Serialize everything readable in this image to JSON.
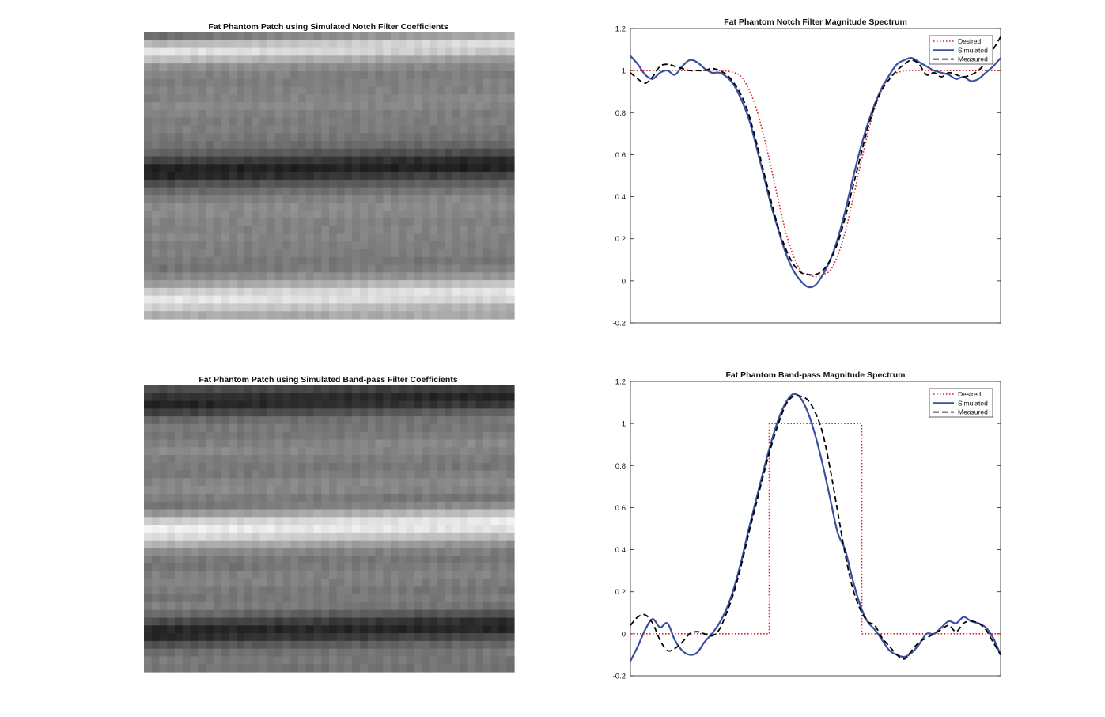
{
  "colors": {
    "desired": "#d62728",
    "simulated": "#3a4fa0",
    "measured": "#000000"
  },
  "images": [
    {
      "title": "Fat Phantom Patch using Simulated Notch Filter Coefficients",
      "rows": [
        0.42,
        0.72,
        0.94,
        0.78,
        0.58,
        0.52,
        0.48,
        0.52,
        0.5,
        0.55,
        0.52,
        0.48,
        0.5,
        0.47,
        0.44,
        0.38,
        0.25,
        0.1,
        0.1,
        0.28,
        0.4,
        0.48,
        0.55,
        0.55,
        0.52,
        0.5,
        0.53,
        0.5,
        0.5,
        0.48,
        0.45,
        0.52,
        0.62,
        0.82,
        0.95,
        0.85,
        0.68
      ],
      "tilt": 0.9
    },
    {
      "title": "Fat Phantom Patch using Simulated Band-pass Filter Coefficients",
      "rows": [
        0.3,
        0.18,
        0.1,
        0.22,
        0.4,
        0.48,
        0.45,
        0.5,
        0.55,
        0.5,
        0.48,
        0.46,
        0.52,
        0.55,
        0.5,
        0.44,
        0.58,
        0.82,
        0.98,
        0.9,
        0.72,
        0.55,
        0.48,
        0.45,
        0.5,
        0.52,
        0.48,
        0.45,
        0.5,
        0.42,
        0.28,
        0.12,
        0.12,
        0.3,
        0.42,
        0.48,
        0.45
      ],
      "tilt": 0.9
    }
  ],
  "chart_data": [
    {
      "type": "line",
      "title": "Fat Phantom Notch Filter Magnitude Spectrum",
      "xlabel": "",
      "ylabel": "",
      "xlim": [
        0,
        1
      ],
      "ylim": [
        -0.2,
        1.2
      ],
      "yticks": [
        -0.2,
        0,
        0.2,
        0.4,
        0.6,
        0.8,
        1,
        1.2
      ],
      "ytick_labels": [
        "-0.2",
        "0",
        "0.2",
        "0.4",
        "0.6",
        "0.8",
        "1",
        "1.2"
      ],
      "grid": false,
      "legend": "top-right",
      "series": [
        {
          "name": "Desired",
          "style": "dotted",
          "x": [
            0,
            0.05,
            0.1,
            0.15,
            0.2,
            0.25,
            0.28,
            0.3,
            0.32,
            0.34,
            0.36,
            0.38,
            0.4,
            0.42,
            0.44,
            0.46,
            0.48,
            0.5,
            0.52,
            0.54,
            0.56,
            0.58,
            0.6,
            0.62,
            0.64,
            0.66,
            0.68,
            0.7,
            0.72,
            0.75,
            0.8,
            0.85,
            0.9,
            0.95,
            1
          ],
          "y": [
            1,
            1,
            1,
            1,
            1,
            1,
            0.99,
            0.97,
            0.91,
            0.82,
            0.69,
            0.54,
            0.38,
            0.23,
            0.12,
            0.05,
            0.03,
            0.02,
            0.03,
            0.05,
            0.12,
            0.23,
            0.38,
            0.54,
            0.69,
            0.82,
            0.91,
            0.97,
            0.99,
            1,
            1,
            1,
            1,
            1,
            1
          ]
        },
        {
          "name": "Simulated",
          "style": "solid",
          "x": [
            0,
            0.02,
            0.04,
            0.06,
            0.08,
            0.1,
            0.12,
            0.14,
            0.16,
            0.18,
            0.2,
            0.22,
            0.24,
            0.26,
            0.28,
            0.3,
            0.32,
            0.34,
            0.36,
            0.38,
            0.4,
            0.42,
            0.44,
            0.46,
            0.48,
            0.5,
            0.52,
            0.54,
            0.56,
            0.58,
            0.6,
            0.62,
            0.64,
            0.66,
            0.68,
            0.7,
            0.72,
            0.74,
            0.76,
            0.78,
            0.8,
            0.82,
            0.84,
            0.86,
            0.88,
            0.9,
            0.92,
            0.94,
            0.96,
            0.98,
            1
          ],
          "y": [
            1.07,
            1.03,
            0.98,
            0.96,
            0.99,
            1.0,
            0.98,
            1.02,
            1.05,
            1.04,
            1.01,
            0.99,
            0.99,
            0.97,
            0.93,
            0.86,
            0.77,
            0.64,
            0.5,
            0.36,
            0.24,
            0.13,
            0.05,
            0.0,
            -0.03,
            -0.02,
            0.03,
            0.1,
            0.2,
            0.33,
            0.48,
            0.62,
            0.74,
            0.84,
            0.92,
            0.98,
            1.03,
            1.05,
            1.06,
            1.04,
            1.02,
            1.0,
            0.99,
            0.98,
            0.96,
            0.97,
            0.95,
            0.96,
            0.99,
            1.02,
            1.06
          ]
        },
        {
          "name": "Measured",
          "style": "dashed",
          "x": [
            0,
            0.02,
            0.04,
            0.06,
            0.08,
            0.1,
            0.12,
            0.14,
            0.16,
            0.18,
            0.2,
            0.22,
            0.24,
            0.26,
            0.28,
            0.3,
            0.32,
            0.34,
            0.36,
            0.38,
            0.4,
            0.42,
            0.44,
            0.46,
            0.48,
            0.5,
            0.52,
            0.54,
            0.56,
            0.58,
            0.6,
            0.62,
            0.64,
            0.66,
            0.68,
            0.7,
            0.72,
            0.74,
            0.76,
            0.78,
            0.8,
            0.82,
            0.84,
            0.86,
            0.88,
            0.9,
            0.92,
            0.94,
            0.96,
            0.98,
            1
          ],
          "y": [
            0.99,
            0.96,
            0.94,
            0.97,
            1.02,
            1.03,
            1.02,
            1.01,
            1.0,
            1.0,
            1.0,
            1.01,
            1.0,
            0.98,
            0.94,
            0.88,
            0.79,
            0.66,
            0.52,
            0.38,
            0.25,
            0.15,
            0.08,
            0.04,
            0.03,
            0.03,
            0.05,
            0.1,
            0.18,
            0.3,
            0.44,
            0.58,
            0.72,
            0.83,
            0.91,
            0.96,
            1.0,
            1.03,
            1.05,
            1.03,
            0.98,
            0.99,
            0.97,
            0.99,
            0.98,
            0.97,
            0.98,
            1.0,
            1.04,
            1.1,
            1.16
          ]
        }
      ]
    },
    {
      "type": "line",
      "title": "Fat Phantom Band-pass Magnitude Spectrum",
      "xlabel": "",
      "ylabel": "",
      "xlim": [
        0,
        1
      ],
      "ylim": [
        -0.2,
        1.2
      ],
      "yticks": [
        -0.2,
        0,
        0.2,
        0.4,
        0.6,
        0.8,
        1,
        1.2
      ],
      "ytick_labels": [
        "-0.2",
        "0",
        "0.2",
        "0.4",
        "0.6",
        "0.8",
        "1",
        "1.2"
      ],
      "grid": false,
      "legend": "top-right",
      "series": [
        {
          "name": "Desired",
          "style": "dotted",
          "x": [
            0,
            0.375,
            0.375,
            0.625,
            0.625,
            1
          ],
          "y": [
            0,
            0,
            1,
            1,
            0,
            0
          ]
        },
        {
          "name": "Simulated",
          "style": "solid",
          "x": [
            0,
            0.02,
            0.04,
            0.06,
            0.08,
            0.1,
            0.12,
            0.14,
            0.16,
            0.18,
            0.2,
            0.22,
            0.24,
            0.26,
            0.28,
            0.3,
            0.32,
            0.34,
            0.36,
            0.38,
            0.4,
            0.42,
            0.44,
            0.46,
            0.48,
            0.5,
            0.52,
            0.54,
            0.56,
            0.58,
            0.6,
            0.62,
            0.64,
            0.66,
            0.68,
            0.7,
            0.72,
            0.74,
            0.76,
            0.78,
            0.8,
            0.82,
            0.84,
            0.86,
            0.88,
            0.9,
            0.92,
            0.94,
            0.96,
            0.98,
            1
          ],
          "y": [
            -0.13,
            -0.06,
            0.02,
            0.07,
            0.03,
            0.05,
            -0.03,
            -0.08,
            -0.1,
            -0.09,
            -0.04,
            0.0,
            0.05,
            0.12,
            0.22,
            0.35,
            0.5,
            0.64,
            0.78,
            0.91,
            1.02,
            1.1,
            1.14,
            1.12,
            1.05,
            0.94,
            0.8,
            0.64,
            0.48,
            0.4,
            0.26,
            0.14,
            0.06,
            0.02,
            -0.03,
            -0.08,
            -0.1,
            -0.11,
            -0.09,
            -0.05,
            0.0,
            0.0,
            0.03,
            0.06,
            0.05,
            0.08,
            0.06,
            0.05,
            0.03,
            -0.02,
            -0.1
          ]
        },
        {
          "name": "Measured",
          "style": "dashed",
          "x": [
            0,
            0.02,
            0.04,
            0.06,
            0.08,
            0.1,
            0.12,
            0.14,
            0.16,
            0.18,
            0.2,
            0.22,
            0.24,
            0.26,
            0.28,
            0.3,
            0.32,
            0.34,
            0.36,
            0.38,
            0.4,
            0.42,
            0.44,
            0.46,
            0.48,
            0.5,
            0.52,
            0.54,
            0.56,
            0.58,
            0.6,
            0.62,
            0.64,
            0.66,
            0.68,
            0.7,
            0.72,
            0.74,
            0.76,
            0.78,
            0.8,
            0.82,
            0.84,
            0.86,
            0.88,
            0.9,
            0.92,
            0.94,
            0.96,
            0.98,
            1
          ],
          "y": [
            0.04,
            0.08,
            0.09,
            0.05,
            -0.03,
            -0.08,
            -0.07,
            -0.04,
            0.0,
            0.01,
            0.0,
            -0.01,
            0.02,
            0.1,
            0.2,
            0.33,
            0.48,
            0.62,
            0.76,
            0.89,
            1.0,
            1.09,
            1.13,
            1.13,
            1.11,
            1.05,
            0.95,
            0.78,
            0.58,
            0.38,
            0.22,
            0.12,
            0.06,
            0.04,
            -0.02,
            -0.06,
            -0.1,
            -0.12,
            -0.08,
            -0.04,
            -0.02,
            0.0,
            0.02,
            0.04,
            0.01,
            0.05,
            0.06,
            0.05,
            0.02,
            -0.04,
            -0.1
          ]
        }
      ]
    }
  ]
}
